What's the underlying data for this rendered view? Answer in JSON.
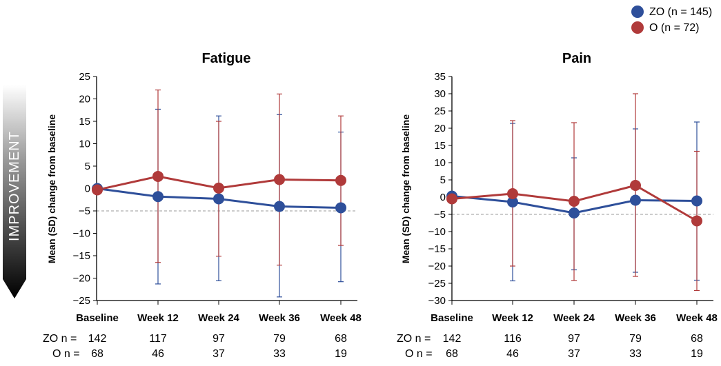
{
  "legend": [
    {
      "label": "ZO (n = 145)",
      "color": "#2e4f9a"
    },
    {
      "label": "O (n = 72)",
      "color": "#b03a3a"
    }
  ],
  "improvement_label": "IMPROVEMENT",
  "row_labels": {
    "zo": "ZO n =",
    "o": "O n ="
  },
  "chart_data": [
    {
      "type": "line",
      "title": "Fatigue",
      "ylabel": "Mean (SD) change from baseline",
      "categories": [
        "Baseline",
        "Week 12",
        "Week 24",
        "Week 36",
        "Week 48"
      ],
      "ylim": [
        -25,
        25
      ],
      "yticks": [
        25,
        20,
        15,
        10,
        5,
        0,
        -5,
        -10,
        -15,
        -20,
        -25
      ],
      "threshold": -5,
      "series": [
        {
          "name": "ZO",
          "color": "#2e4f9a",
          "values": [
            0,
            -1.8,
            -2.3,
            -4.0,
            -4.3
          ],
          "err_high": [
            null,
            17.7,
            16.2,
            16.5,
            12.6
          ],
          "err_low": [
            null,
            -21.3,
            -20.6,
            -24.2,
            -20.8
          ]
        },
        {
          "name": "O",
          "color": "#b03a3a",
          "values": [
            -0.3,
            2.7,
            0.1,
            2.0,
            1.8
          ],
          "err_high": [
            null,
            22.0,
            15.0,
            21.1,
            16.2
          ],
          "err_low": [
            null,
            -16.5,
            -15.1,
            -17.1,
            -12.7
          ]
        }
      ],
      "n": {
        "zo": [
          "142",
          "117",
          "97",
          "79",
          "68"
        ],
        "o": [
          "68",
          "46",
          "37",
          "33",
          "19"
        ]
      }
    },
    {
      "type": "line",
      "title": "Pain",
      "ylabel": "Mean (SD) change from baseline",
      "categories": [
        "Baseline",
        "Week 12",
        "Week 24",
        "Week 36",
        "Week 48"
      ],
      "ylim": [
        -30,
        35
      ],
      "yticks": [
        35,
        30,
        25,
        20,
        15,
        10,
        5,
        0,
        -5,
        -10,
        -15,
        -20,
        -25,
        -30
      ],
      "threshold": -5,
      "series": [
        {
          "name": "ZO",
          "color": "#2e4f9a",
          "values": [
            0.3,
            -1.4,
            -4.6,
            -0.9,
            -1.1
          ],
          "err_high": [
            null,
            21.4,
            11.4,
            19.8,
            21.8
          ],
          "err_low": [
            null,
            -24.3,
            -21.1,
            -21.8,
            -24.1
          ]
        },
        {
          "name": "O",
          "color": "#b03a3a",
          "values": [
            -0.5,
            1.0,
            -1.2,
            3.4,
            -6.9
          ],
          "err_high": [
            null,
            22.2,
            21.6,
            30.0,
            13.3
          ],
          "err_low": [
            null,
            -20.0,
            -24.2,
            -23.0,
            -27.1
          ]
        }
      ],
      "n": {
        "zo": [
          "142",
          "116",
          "97",
          "79",
          "68"
        ],
        "o": [
          "68",
          "46",
          "37",
          "33",
          "19"
        ]
      }
    }
  ]
}
